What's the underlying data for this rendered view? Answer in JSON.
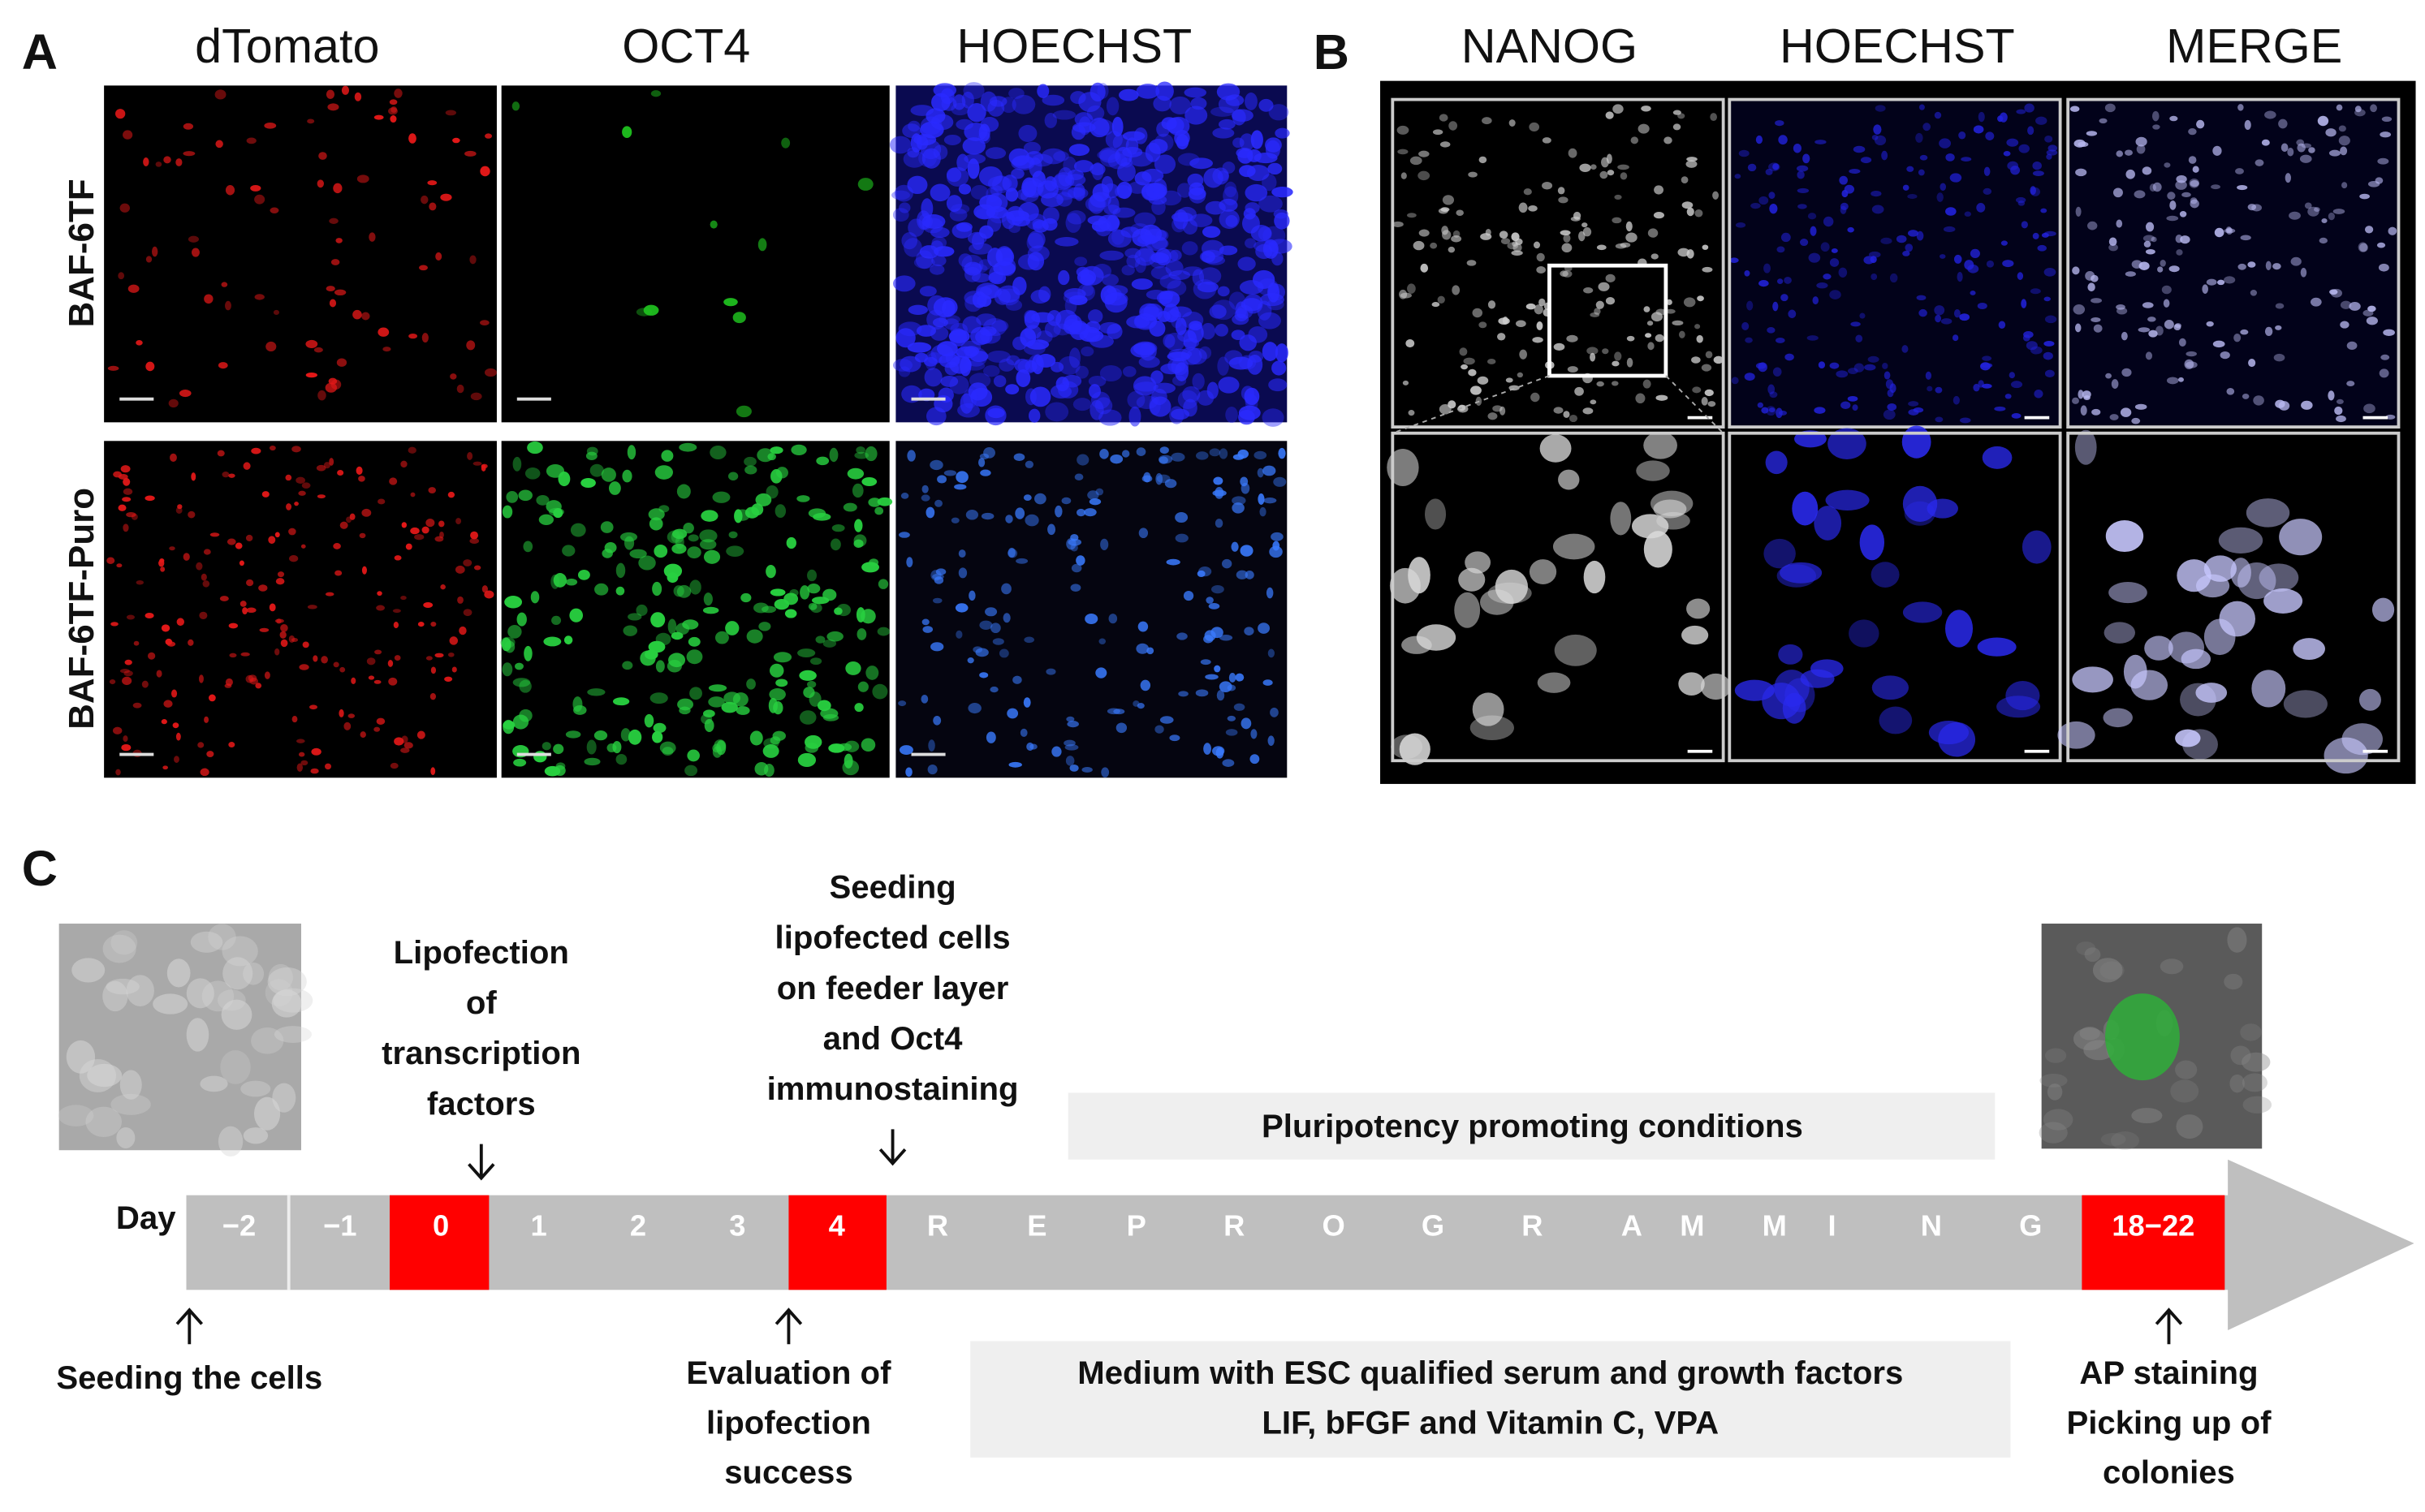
{
  "panel_a": {
    "label": "A",
    "columns": [
      "dTomato",
      "OCT4",
      "HOECHST"
    ],
    "rows": [
      "BAF-6TF",
      "BAF-6TF-Puro"
    ]
  },
  "panel_b": {
    "label": "B",
    "columns": [
      "NANOG",
      "HOECHST",
      "MERGE"
    ]
  },
  "panel_c": {
    "label": "C",
    "day_label": "Day",
    "days": [
      "−2",
      "−1",
      "0",
      "1",
      "2",
      "3",
      "4",
      "R",
      "E",
      "P",
      "R",
      "O",
      "G",
      "R",
      "A",
      "M",
      "M",
      "I",
      "N",
      "G",
      "18−22"
    ],
    "above": [
      [
        "Lipofection",
        "of",
        "transcription",
        "factors"
      ],
      [
        "Seeding",
        "lipofected cells",
        "on feeder layer",
        "and Oct4",
        "immunostaining"
      ]
    ],
    "below": [
      [
        "Seeding the cells"
      ],
      [
        "Evaluation of",
        "lipofection",
        "success"
      ],
      [
        "AP staining",
        "Picking up of",
        "colonies"
      ]
    ],
    "pluripotency_box": "Pluripotency promoting conditions",
    "medium_box": [
      "Medium with ESC qualified serum and growth factors",
      "LIF, bFGF and Vitamin C, VPA"
    ]
  }
}
